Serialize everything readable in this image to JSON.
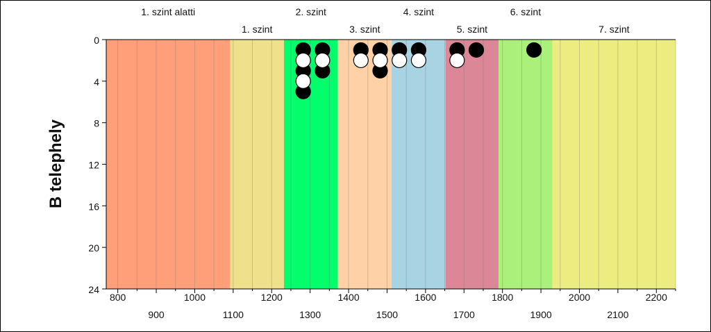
{
  "chart_data": {
    "type": "scatter",
    "title": "",
    "xlabel": "",
    "ylabel": "B telephely",
    "xlim": [
      770,
      2250
    ],
    "ylim": [
      0,
      24
    ],
    "y_inverted": true,
    "y_ticks": [
      "0",
      "4",
      "8",
      "12",
      "16",
      "20",
      "24"
    ],
    "x_ticks_top_row": [
      "800",
      "1000",
      "1200",
      "1400",
      "1600",
      "1800",
      "2000",
      "2200"
    ],
    "x_ticks_bottom_row": [
      "900",
      "1100",
      "1300",
      "1500",
      "1700",
      "1900",
      "2100"
    ],
    "zones": [
      {
        "label": "1. szint alatti",
        "from": 770,
        "to": 1092,
        "color": "#FF9F79"
      },
      {
        "label": "1. szint",
        "from": 1092,
        "to": 1232,
        "color": "#EFE18C"
      },
      {
        "label": "2. szint",
        "from": 1232,
        "to": 1372,
        "color": "#00FF6A"
      },
      {
        "label": "3. szint",
        "from": 1372,
        "to": 1512,
        "color": "#FFD1A6"
      },
      {
        "label": "4. szint",
        "from": 1512,
        "to": 1652,
        "color": "#A8D3E3"
      },
      {
        "label": "5. szint",
        "from": 1652,
        "to": 1790,
        "color": "#DB8797"
      },
      {
        "label": "6. szint",
        "from": 1790,
        "to": 1930,
        "color": "#AAF07A"
      },
      {
        "label": "7. szint",
        "from": 1930,
        "to": 2250,
        "color": "#ECEC80"
      }
    ],
    "series": [
      {
        "fill": "#000000",
        "points": [
          [
            1282,
            1
          ],
          [
            1332,
            1
          ],
          [
            1282,
            3
          ],
          [
            1282,
            5
          ],
          [
            1332,
            3
          ],
          [
            1432,
            1
          ],
          [
            1482,
            1
          ],
          [
            1482,
            3
          ],
          [
            1532,
            1
          ],
          [
            1582,
            1
          ],
          [
            1682,
            1
          ],
          [
            1732,
            1
          ],
          [
            1882,
            1
          ]
        ]
      },
      {
        "fill": "#ffffff",
        "points": [
          [
            1282,
            2
          ],
          [
            1282,
            4
          ],
          [
            1332,
            2
          ],
          [
            1432,
            2
          ],
          [
            1482,
            2
          ],
          [
            1532,
            2
          ],
          [
            1582,
            2
          ],
          [
            1682,
            2
          ]
        ]
      }
    ]
  }
}
